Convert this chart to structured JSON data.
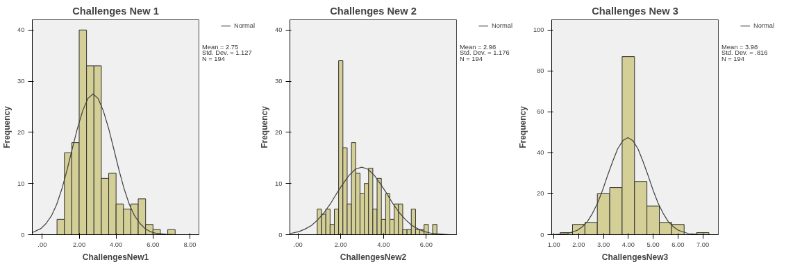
{
  "chart_data": [
    {
      "type": "histogram",
      "title": "Challenges New 1",
      "xlabel": "ChallengesNew1",
      "ylabel": "Frequency",
      "color": "#d4cf96",
      "bins": [
        0.8,
        1.2,
        1.6,
        2.0,
        2.4,
        2.8,
        3.2,
        3.6,
        4.0,
        4.4,
        4.8,
        5.2,
        5.6,
        6.0,
        6.4,
        6.8,
        7.2
      ],
      "values": [
        3,
        16,
        18,
        40,
        33,
        33,
        11,
        12,
        6,
        5,
        6,
        7,
        2,
        1,
        0,
        1
      ],
      "xlim": [
        -0.54,
        8.49
      ],
      "ylim": [
        0,
        42
      ],
      "xticks": [
        {
          "value": 0,
          "label": ".00"
        },
        {
          "value": 2,
          "label": "2.00"
        },
        {
          "value": 4,
          "label": "4.00"
        },
        {
          "value": 6,
          "label": "6.00"
        },
        {
          "value": 8,
          "label": "8.00"
        }
      ],
      "yticks": [
        0,
        10,
        20,
        30,
        40
      ],
      "grid": false,
      "legend": "top right",
      "annotations": [
        "Mean = 2.75",
        "Std. Dev. = 1.127",
        "N = 194"
      ],
      "series": [
        {
          "type": "line",
          "name": "Normal",
          "color": "#404040",
          "x": [
            -0.54,
            -0.07,
            0.21,
            0.5,
            0.78,
            1.06,
            1.34,
            1.62,
            1.9,
            2.19,
            2.47,
            2.75,
            3.03,
            3.31,
            3.6,
            3.88,
            4.16,
            4.44,
            4.72,
            5.0,
            5.29,
            5.57,
            5.85,
            6.13,
            6.69,
            7.26,
            7.82,
            8.49
          ],
          "values": [
            0.4,
            1.2,
            2.2,
            3.7,
            5.9,
            8.9,
            12.6,
            16.7,
            20.7,
            24.2,
            26.6,
            27.5,
            26.6,
            24.2,
            20.7,
            16.7,
            12.6,
            8.9,
            5.9,
            3.7,
            2.2,
            1.2,
            0.6,
            0.3,
            0.1,
            0,
            0,
            0
          ]
        }
      ]
    },
    {
      "type": "histogram",
      "title": "Challenges New 2",
      "xlabel": "ChallengesNew2",
      "ylabel": "Frequency",
      "color": "#d4cf96",
      "bins": [
        0.9,
        1.1,
        1.3,
        1.5,
        1.7,
        1.9,
        2.1,
        2.3,
        2.5,
        2.7,
        2.9,
        3.1,
        3.3,
        3.5,
        3.7,
        3.9,
        4.1,
        4.3,
        4.5,
        4.7,
        4.9,
        5.1,
        5.3,
        5.5,
        5.7,
        5.9,
        6.1,
        6.3,
        6.5
      ],
      "values": [
        5,
        4,
        5,
        2,
        5,
        34,
        17,
        6,
        18,
        12,
        8,
        10,
        13,
        5,
        11,
        3,
        8,
        3,
        6,
        6,
        1,
        1,
        5,
        1,
        1,
        2,
        0,
        2
      ],
      "xlim": [
        -0.38,
        7.42
      ],
      "ylim": [
        0,
        42
      ],
      "xticks": [
        {
          "value": 0,
          "label": ".00"
        },
        {
          "value": 2,
          "label": "2.00"
        },
        {
          "value": 4,
          "label": "4.00"
        },
        {
          "value": 6,
          "label": "6.00"
        }
      ],
      "yticks": [
        0,
        10,
        20,
        30,
        40
      ],
      "grid": false,
      "legend": "top right",
      "annotations": [
        "Mean = 2.98",
        "Std. Dev. = 1.176",
        "N = 194"
      ],
      "series": [
        {
          "type": "line",
          "name": "Normal",
          "color": "#404040",
          "x": [
            -0.38,
            0.04,
            0.33,
            0.63,
            0.92,
            1.22,
            1.51,
            1.8,
            2.1,
            2.39,
            2.69,
            2.98,
            3.27,
            3.57,
            3.86,
            4.16,
            4.45,
            4.74,
            5.04,
            5.33,
            5.63,
            5.92,
            6.21,
            6.51,
            7.1,
            7.42
          ],
          "values": [
            0.2,
            0.6,
            1.1,
            1.8,
            2.9,
            4.3,
            6.0,
            8.0,
            9.9,
            11.6,
            12.8,
            13.2,
            12.8,
            11.6,
            9.9,
            8.0,
            6.0,
            4.3,
            2.9,
            1.8,
            1.1,
            0.6,
            0.3,
            0.2,
            0,
            0
          ]
        }
      ]
    },
    {
      "type": "histogram",
      "title": "Challenges New 3",
      "xlabel": "ChallengesNew3",
      "ylabel": "Frequency",
      "color": "#d4cf96",
      "bins": [
        1.25,
        1.75,
        2.25,
        2.75,
        3.25,
        3.75,
        4.25,
        4.75,
        5.25,
        5.75,
        6.25,
        6.75,
        7.25
      ],
      "values": [
        1,
        5,
        6,
        20,
        23,
        87,
        26,
        14,
        6,
        5,
        0,
        1
      ],
      "xlim": [
        0.91,
        7.63
      ],
      "ylim": [
        0,
        105
      ],
      "xticks": [
        {
          "value": 1,
          "label": "1.00"
        },
        {
          "value": 2,
          "label": "2.00"
        },
        {
          "value": 3,
          "label": "3.00"
        },
        {
          "value": 4,
          "label": "4.00"
        },
        {
          "value": 5,
          "label": "5.00"
        },
        {
          "value": 6,
          "label": "6.00"
        },
        {
          "value": 7,
          "label": "7.00"
        }
      ],
      "yticks": [
        0,
        20,
        40,
        60,
        80,
        100
      ],
      "grid": false,
      "legend": "top right",
      "annotations": [
        "Mean = 3.98",
        "Std. Dev. = .816",
        "N = 194"
      ],
      "series": [
        {
          "type": "line",
          "name": "Normal",
          "color": "#404040",
          "x": [
            0.91,
            1.53,
            1.94,
            2.14,
            2.35,
            2.55,
            2.76,
            2.96,
            3.16,
            3.37,
            3.57,
            3.78,
            3.98,
            4.18,
            4.39,
            4.59,
            4.8,
            5.0,
            5.2,
            5.41,
            5.61,
            5.82,
            6.02,
            6.43,
            6.84,
            7.25,
            7.63
          ],
          "values": [
            0,
            0.5,
            2.1,
            3.8,
            6.4,
            10.3,
            15.4,
            21.7,
            28.8,
            35.8,
            41.9,
            46.0,
            47.4,
            46.0,
            41.9,
            35.8,
            28.8,
            21.7,
            15.4,
            10.3,
            6.4,
            3.8,
            2.1,
            0.5,
            0.1,
            0,
            0
          ]
        }
      ]
    }
  ]
}
